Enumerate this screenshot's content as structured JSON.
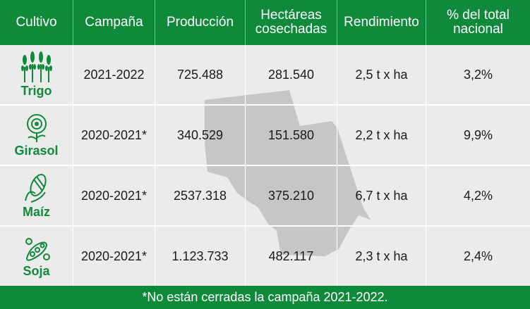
{
  "header": {
    "cols": [
      "Cultivo",
      "Campaña",
      "Producción",
      "Hectáreas cosechadas",
      "Rendimiento",
      "% del total nacional"
    ]
  },
  "rows": [
    {
      "crop": "Trigo",
      "icon": "wheat-icon",
      "campaign": "2021-2022",
      "production": "725.488",
      "hectares": "281.540",
      "yield": "2,5 t x ha",
      "share": "3,2%"
    },
    {
      "crop": "Girasol",
      "icon": "sunflower-icon",
      "campaign": "2020-2021*",
      "production": "340.529",
      "hectares": "151.580",
      "yield": "2,2 t x ha",
      "share": "9,9%"
    },
    {
      "crop": "Maíz",
      "icon": "corn-icon",
      "campaign": "2020-2021*",
      "production": "2537.318",
      "hectares": "375.210",
      "yield": "6,7 t x ha",
      "share": "4,2%"
    },
    {
      "crop": "Soja",
      "icon": "soybean-icon",
      "campaign": "2020-2021*",
      "production": "1.123.733",
      "hectares": "482.117",
      "yield": "2,3 t x ha",
      "share": "2,4%"
    }
  ],
  "footer": {
    "note": "*No están cerradas la campaña 2021-2022."
  },
  "colors": {
    "green": "#0f8a3b",
    "row_bg": "#ebebeb",
    "map": "#c6c6c6"
  }
}
